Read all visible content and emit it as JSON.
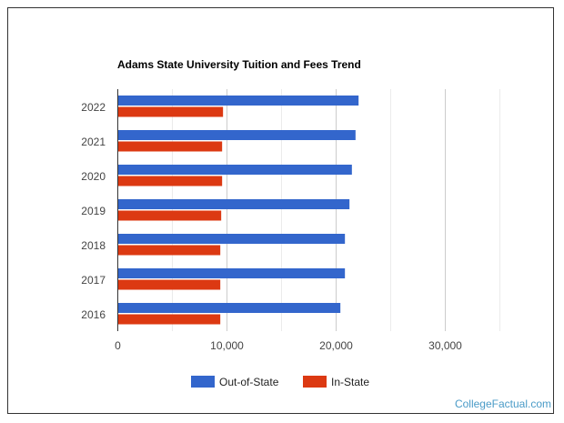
{
  "chart_data": {
    "type": "bar",
    "orientation": "horizontal",
    "title": "Adams State University Tuition and Fees Trend",
    "categories": [
      "2022",
      "2021",
      "2020",
      "2019",
      "2018",
      "2017",
      "2016"
    ],
    "series": [
      {
        "name": "Out-of-State",
        "color": "#3366cc",
        "values": [
          22056,
          21778,
          21444,
          21222,
          20806,
          20806,
          20389
        ]
      },
      {
        "name": "In-State",
        "color": "#dc3912",
        "values": [
          9639,
          9556,
          9556,
          9472,
          9389,
          9389,
          9389
        ]
      }
    ],
    "xlim": [
      0,
      30000
    ],
    "xticks": [
      0,
      10000,
      20000,
      30000
    ],
    "xtick_labels": [
      "0",
      "10,000",
      "20,000",
      "30,000"
    ],
    "grid": true,
    "legend": "bottom"
  },
  "watermark": "CollegeFactual.com"
}
